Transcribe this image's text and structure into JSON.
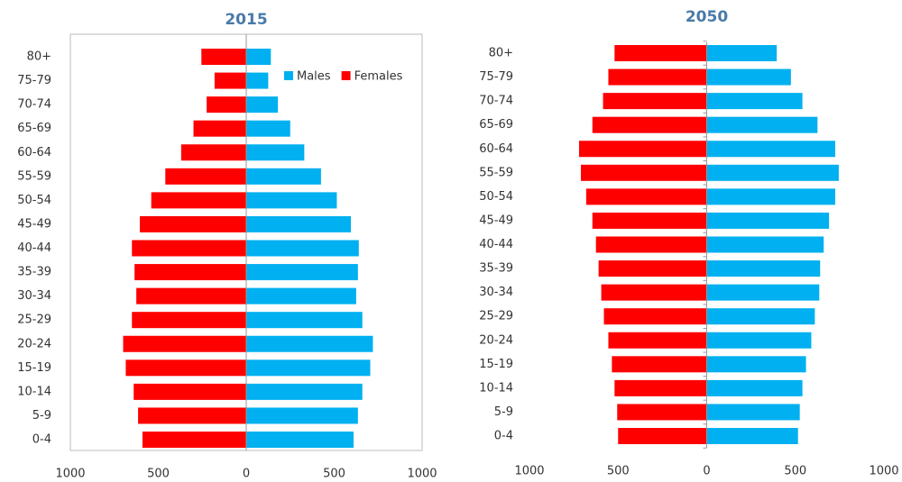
{
  "chart_data": [
    {
      "type": "bar",
      "orientation": "horizontal",
      "stacked": false,
      "title": "2015",
      "categories": [
        "0-4",
        "5-9",
        "10-14",
        "15-19",
        "20-24",
        "25-29",
        "30-34",
        "35-39",
        "40-44",
        "45-49",
        "50-54",
        "55-59",
        "60-64",
        "65-69",
        "70-74",
        "75-79",
        "80+"
      ],
      "series": [
        {
          "name": "Males",
          "color": "#00b0f0",
          "values": [
            610,
            635,
            660,
            705,
            720,
            660,
            625,
            635,
            640,
            595,
            515,
            425,
            330,
            250,
            180,
            125,
            140
          ]
        },
        {
          "name": "Females",
          "color": "#ff0000",
          "values": [
            -590,
            -615,
            -640,
            -685,
            -700,
            -650,
            -625,
            -635,
            -650,
            -605,
            -540,
            -460,
            -370,
            -300,
            -225,
            -180,
            -255
          ]
        }
      ],
      "xlim": [
        -1000,
        1000
      ],
      "xticks": [
        {
          "value": -1000,
          "label": "1000"
        },
        {
          "value": -500,
          "label": "500"
        },
        0,
        500,
        1000
      ],
      "legend": "top-right",
      "frame": true
    },
    {
      "type": "bar",
      "orientation": "horizontal",
      "stacked": false,
      "title": "2050",
      "categories": [
        "0-4",
        "5-9",
        "10-14",
        "15-19",
        "20-24",
        "25-29",
        "30-34",
        "35-39",
        "40-44",
        "45-49",
        "50-54",
        "55-59",
        "60-64",
        "65-69",
        "70-74",
        "75-79",
        "80+"
      ],
      "series": [
        {
          "color": "#00b0f0",
          "values": [
            515,
            525,
            540,
            560,
            590,
            610,
            635,
            640,
            660,
            690,
            725,
            745,
            725,
            625,
            540,
            475,
            395
          ]
        },
        {
          "color": "#ff0000",
          "values": [
            -500,
            -505,
            -520,
            -535,
            -555,
            -580,
            -595,
            -610,
            -625,
            -645,
            -680,
            -710,
            -720,
            -645,
            -585,
            -555,
            -520
          ]
        }
      ],
      "xlim": [
        -1000,
        1000
      ],
      "xticks": [
        {
          "value": -1000,
          "label": "1000"
        },
        {
          "value": -500,
          "label": "500"
        },
        0,
        500,
        1000
      ],
      "frame": false
    }
  ]
}
